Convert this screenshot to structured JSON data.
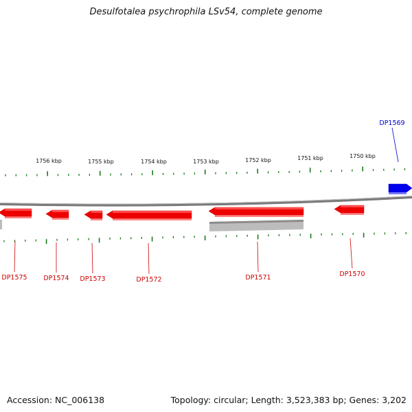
{
  "title": "Desulfotalea psychrophila LSv54, complete genome",
  "footer": {
    "accession": "Accession: NC_006138",
    "summary": "Topology: circular; Length: 3,523,383 bp; Genes: 3,202"
  },
  "kbp_labels": [
    "1756 kbp",
    "1755 kbp",
    "1754 kbp",
    "1753 kbp",
    "1752 kbp",
    "1751 kbp",
    "1750 kbp"
  ],
  "genes": [
    {
      "name": "DP1569",
      "strand": "forward",
      "color": "#0000dd"
    },
    {
      "name": "DP1570",
      "strand": "reverse",
      "color": "#cc0000"
    },
    {
      "name": "DP1571",
      "strand": "reverse",
      "color": "#cc0000"
    },
    {
      "name": "DP1572",
      "strand": "reverse",
      "color": "#cc0000"
    },
    {
      "name": "DP1573",
      "strand": "reverse",
      "color": "#cc0000"
    },
    {
      "name": "DP1574",
      "strand": "reverse",
      "color": "#cc0000"
    },
    {
      "name": "DP1575",
      "strand": "reverse",
      "color": "#cc0000"
    }
  ],
  "colors": {
    "forward_gene": "#0000ee",
    "reverse_gene": "#ee0000",
    "tick": "#1a7a1a",
    "backbone": "#888888",
    "feature_gray": "#b8b8b8"
  }
}
